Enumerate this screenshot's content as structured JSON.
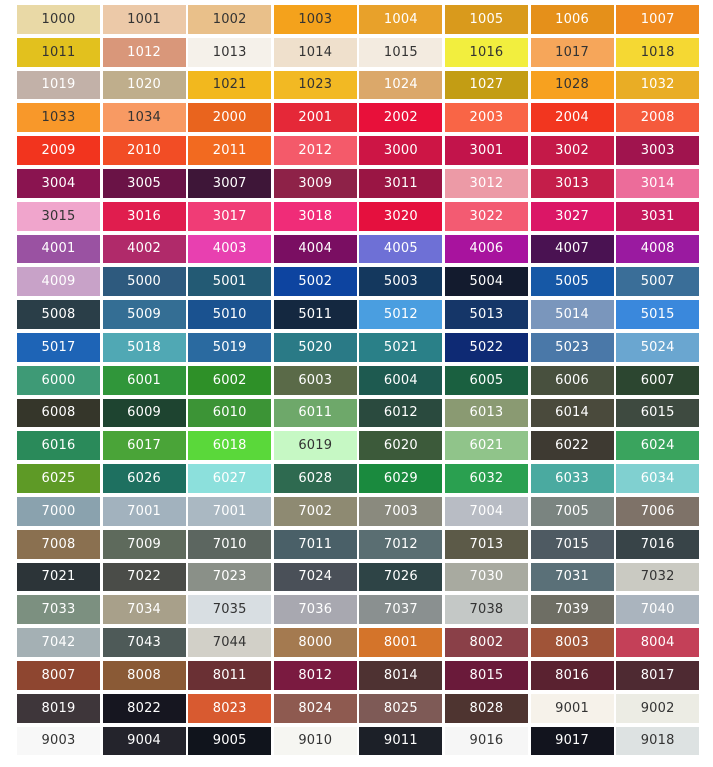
{
  "rows": [
    [
      {
        "code": "1000",
        "bg": "#e9d9a6",
        "fg": "#333"
      },
      {
        "code": "1001",
        "bg": "#ecc9a8",
        "fg": "#333"
      },
      {
        "code": "1002",
        "bg": "#e9c08a",
        "fg": "#333"
      },
      {
        "code": "1003",
        "bg": "#f4a21c",
        "fg": "#333"
      },
      {
        "code": "1004",
        "bg": "#e8a12a",
        "fg": "#fff"
      },
      {
        "code": "1005",
        "bg": "#d99a1c",
        "fg": "#fff"
      },
      {
        "code": "1006",
        "bg": "#e5901a",
        "fg": "#fff"
      },
      {
        "code": "1007",
        "bg": "#ef8a1e",
        "fg": "#fff"
      }
    ],
    [
      {
        "code": "1011",
        "bg": "#e2c11e",
        "fg": "#333"
      },
      {
        "code": "1012",
        "bg": "#d9977a",
        "fg": "#fff"
      },
      {
        "code": "1013",
        "bg": "#f5f1ea",
        "fg": "#333"
      },
      {
        "code": "1014",
        "bg": "#efe0cc",
        "fg": "#333"
      },
      {
        "code": "1015",
        "bg": "#f3ebe0",
        "fg": "#333"
      },
      {
        "code": "1016",
        "bg": "#f2ee3e",
        "fg": "#333"
      },
      {
        "code": "1017",
        "bg": "#f6a65a",
        "fg": "#333"
      },
      {
        "code": "1018",
        "bg": "#f5d833",
        "fg": "#333"
      }
    ],
    [
      {
        "code": "1019",
        "bg": "#c2b1a8",
        "fg": "#fff"
      },
      {
        "code": "1020",
        "bg": "#bfae8c",
        "fg": "#fff"
      },
      {
        "code": "1021",
        "bg": "#f2b81e",
        "fg": "#333"
      },
      {
        "code": "1023",
        "bg": "#f2b923",
        "fg": "#333"
      },
      {
        "code": "1024",
        "bg": "#dba86a",
        "fg": "#fff"
      },
      {
        "code": "1027",
        "bg": "#c39d14",
        "fg": "#fff"
      },
      {
        "code": "1028",
        "bg": "#f7a11f",
        "fg": "#333"
      },
      {
        "code": "1032",
        "bg": "#e9ad25",
        "fg": "#fff"
      }
    ],
    [
      {
        "code": "1033",
        "bg": "#f8982a",
        "fg": "#333"
      },
      {
        "code": "1034",
        "bg": "#f89a63",
        "fg": "#333"
      },
      {
        "code": "2000",
        "bg": "#e9641e",
        "fg": "#fff"
      },
      {
        "code": "2001",
        "bg": "#e52838",
        "fg": "#fff"
      },
      {
        "code": "2002",
        "bg": "#e8103a",
        "fg": "#fff"
      },
      {
        "code": "2003",
        "bg": "#f96546",
        "fg": "#fff"
      },
      {
        "code": "2004",
        "bg": "#f2361f",
        "fg": "#fff"
      },
      {
        "code": "2008",
        "bg": "#f55a3c",
        "fg": "#fff"
      }
    ],
    [
      {
        "code": "2009",
        "bg": "#f2341e",
        "fg": "#fff"
      },
      {
        "code": "2010",
        "bg": "#f24d25",
        "fg": "#fff"
      },
      {
        "code": "2011",
        "bg": "#f26a20",
        "fg": "#fff"
      },
      {
        "code": "2012",
        "bg": "#f45a6a",
        "fg": "#fff"
      },
      {
        "code": "3000",
        "bg": "#cd1545",
        "fg": "#fff"
      },
      {
        "code": "3001",
        "bg": "#c2144b",
        "fg": "#fff"
      },
      {
        "code": "3002",
        "bg": "#c41948",
        "fg": "#fff"
      },
      {
        "code": "3003",
        "bg": "#a0144e",
        "fg": "#fff"
      }
    ],
    [
      {
        "code": "3004",
        "bg": "#8a1450",
        "fg": "#fff"
      },
      {
        "code": "3005",
        "bg": "#6a1346",
        "fg": "#fff"
      },
      {
        "code": "3007",
        "bg": "#3e1638",
        "fg": "#fff"
      },
      {
        "code": "3009",
        "bg": "#8e2248",
        "fg": "#fff"
      },
      {
        "code": "3011",
        "bg": "#9a1544",
        "fg": "#fff"
      },
      {
        "code": "3012",
        "bg": "#ec9aa6",
        "fg": "#fff"
      },
      {
        "code": "3013",
        "bg": "#c41e4a",
        "fg": "#fff"
      },
      {
        "code": "3014",
        "bg": "#ec6c9a",
        "fg": "#fff"
      }
    ],
    [
      {
        "code": "3015",
        "bg": "#f0a5cc",
        "fg": "#333"
      },
      {
        "code": "3016",
        "bg": "#e01d4e",
        "fg": "#fff"
      },
      {
        "code": "3017",
        "bg": "#f03c76",
        "fg": "#fff"
      },
      {
        "code": "3018",
        "bg": "#f02c78",
        "fg": "#fff"
      },
      {
        "code": "3020",
        "bg": "#e5103e",
        "fg": "#fff"
      },
      {
        "code": "3022",
        "bg": "#f35b72",
        "fg": "#fff"
      },
      {
        "code": "3027",
        "bg": "#db1666",
        "fg": "#fff"
      },
      {
        "code": "3031",
        "bg": "#c5165a",
        "fg": "#fff"
      }
    ],
    [
      {
        "code": "4001",
        "bg": "#9a52a2",
        "fg": "#fff"
      },
      {
        "code": "4002",
        "bg": "#b02a6a",
        "fg": "#fff"
      },
      {
        "code": "4003",
        "bg": "#e840b0",
        "fg": "#fff"
      },
      {
        "code": "4004",
        "bg": "#7a0e62",
        "fg": "#fff"
      },
      {
        "code": "4005",
        "bg": "#6e70d6",
        "fg": "#fff"
      },
      {
        "code": "4006",
        "bg": "#a8139e",
        "fg": "#fff"
      },
      {
        "code": "4007",
        "bg": "#4a1252",
        "fg": "#fff"
      },
      {
        "code": "4008",
        "bg": "#9a1aa0",
        "fg": "#fff"
      }
    ],
    [
      {
        "code": "4009",
        "bg": "#c8a2c8",
        "fg": "#fff"
      },
      {
        "code": "5000",
        "bg": "#2e5a7e",
        "fg": "#fff"
      },
      {
        "code": "5001",
        "bg": "#235a74",
        "fg": "#fff"
      },
      {
        "code": "5002",
        "bg": "#0d44a0",
        "fg": "#fff"
      },
      {
        "code": "5003",
        "bg": "#14385e",
        "fg": "#fff"
      },
      {
        "code": "5004",
        "bg": "#131b2e",
        "fg": "#fff"
      },
      {
        "code": "5005",
        "bg": "#1658a6",
        "fg": "#fff"
      },
      {
        "code": "5007",
        "bg": "#3a6e98",
        "fg": "#fff"
      }
    ],
    [
      {
        "code": "5008",
        "bg": "#2a3e48",
        "fg": "#fff"
      },
      {
        "code": "5009",
        "bg": "#346e94",
        "fg": "#fff"
      },
      {
        "code": "5010",
        "bg": "#1a5290",
        "fg": "#fff"
      },
      {
        "code": "5011",
        "bg": "#142840",
        "fg": "#fff"
      },
      {
        "code": "5012",
        "bg": "#4a9ee0",
        "fg": "#fff"
      },
      {
        "code": "5013",
        "bg": "#153668",
        "fg": "#fff"
      },
      {
        "code": "5014",
        "bg": "#7a96bc",
        "fg": "#fff"
      },
      {
        "code": "5015",
        "bg": "#3a88dc",
        "fg": "#fff"
      }
    ],
    [
      {
        "code": "5017",
        "bg": "#1e64b6",
        "fg": "#fff"
      },
      {
        "code": "5018",
        "bg": "#50a8b4",
        "fg": "#fff"
      },
      {
        "code": "5019",
        "bg": "#2a6aa0",
        "fg": "#fff"
      },
      {
        "code": "5020",
        "bg": "#2a7a86",
        "fg": "#fff"
      },
      {
        "code": "5021",
        "bg": "#2a8088",
        "fg": "#fff"
      },
      {
        "code": "5022",
        "bg": "#0e2a74",
        "fg": "#fff"
      },
      {
        "code": "5023",
        "bg": "#4a78a8",
        "fg": "#fff"
      },
      {
        "code": "5024",
        "bg": "#6aa6d0",
        "fg": "#fff"
      }
    ],
    [
      {
        "code": "6000",
        "bg": "#3e9a76",
        "fg": "#fff"
      },
      {
        "code": "6001",
        "bg": "#30963a",
        "fg": "#fff"
      },
      {
        "code": "6002",
        "bg": "#2e9028",
        "fg": "#fff"
      },
      {
        "code": "6003",
        "bg": "#5a6a48",
        "fg": "#fff"
      },
      {
        "code": "6004",
        "bg": "#1e5a50",
        "fg": "#fff"
      },
      {
        "code": "6005",
        "bg": "#1a6040",
        "fg": "#fff"
      },
      {
        "code": "6006",
        "bg": "#48503e",
        "fg": "#fff"
      },
      {
        "code": "6007",
        "bg": "#2c4630",
        "fg": "#fff"
      }
    ],
    [
      {
        "code": "6008",
        "bg": "#35362a",
        "fg": "#fff"
      },
      {
        "code": "6009",
        "bg": "#1e4430",
        "fg": "#fff"
      },
      {
        "code": "6010",
        "bg": "#3c9436",
        "fg": "#fff"
      },
      {
        "code": "6011",
        "bg": "#6ea86a",
        "fg": "#fff"
      },
      {
        "code": "6012",
        "bg": "#2a4a3e",
        "fg": "#fff"
      },
      {
        "code": "6013",
        "bg": "#8a9a72",
        "fg": "#fff"
      },
      {
        "code": "6014",
        "bg": "#4a4a3c",
        "fg": "#fff"
      },
      {
        "code": "6015",
        "bg": "#3e4a40",
        "fg": "#fff"
      }
    ],
    [
      {
        "code": "6016",
        "bg": "#2a8a5a",
        "fg": "#fff"
      },
      {
        "code": "6017",
        "bg": "#4aa438",
        "fg": "#fff"
      },
      {
        "code": "6018",
        "bg": "#5ad83a",
        "fg": "#fff"
      },
      {
        "code": "6019",
        "bg": "#c6f8c4",
        "fg": "#333"
      },
      {
        "code": "6020",
        "bg": "#3c5a3a",
        "fg": "#fff"
      },
      {
        "code": "6021",
        "bg": "#90c48a",
        "fg": "#fff"
      },
      {
        "code": "6022",
        "bg": "#3e3a32",
        "fg": "#fff"
      },
      {
        "code": "6024",
        "bg": "#3aa45e",
        "fg": "#fff"
      }
    ],
    [
      {
        "code": "6025",
        "bg": "#5e9a26",
        "fg": "#fff"
      },
      {
        "code": "6026",
        "bg": "#1e7060",
        "fg": "#fff"
      },
      {
        "code": "6027",
        "bg": "#8ce0dc",
        "fg": "#fff"
      },
      {
        "code": "6028",
        "bg": "#2e6a50",
        "fg": "#fff"
      },
      {
        "code": "6029",
        "bg": "#1a8a3e",
        "fg": "#fff"
      },
      {
        "code": "6032",
        "bg": "#2aa050",
        "fg": "#fff"
      },
      {
        "code": "6033",
        "bg": "#4aaaa0",
        "fg": "#fff"
      },
      {
        "code": "6034",
        "bg": "#80d0d0",
        "fg": "#fff"
      }
    ],
    [
      {
        "code": "7000",
        "bg": "#8aa2ae",
        "fg": "#fff"
      },
      {
        "code": "7001",
        "bg": "#a2b2be",
        "fg": "#fff"
      },
      {
        "code": "7001",
        "bg": "#aab8c2",
        "fg": "#fff"
      },
      {
        "code": "7002",
        "bg": "#8e8a72",
        "fg": "#fff"
      },
      {
        "code": "7003",
        "bg": "#8a8a7e",
        "fg": "#fff"
      },
      {
        "code": "7004",
        "bg": "#b8bcc4",
        "fg": "#fff"
      },
      {
        "code": "7005",
        "bg": "#7a8480",
        "fg": "#fff"
      },
      {
        "code": "7006",
        "bg": "#7e7268",
        "fg": "#fff"
      }
    ],
    [
      {
        "code": "7008",
        "bg": "#8a7050",
        "fg": "#fff"
      },
      {
        "code": "7009",
        "bg": "#5e6a5c",
        "fg": "#fff"
      },
      {
        "code": "7010",
        "bg": "#5c6660",
        "fg": "#fff"
      },
      {
        "code": "7011",
        "bg": "#4a6068",
        "fg": "#fff"
      },
      {
        "code": "7012",
        "bg": "#5a6e72",
        "fg": "#fff"
      },
      {
        "code": "7013",
        "bg": "#5c5a48",
        "fg": "#fff"
      },
      {
        "code": "7015",
        "bg": "#4e5a62",
        "fg": "#fff"
      },
      {
        "code": "7016",
        "bg": "#384448",
        "fg": "#fff"
      }
    ],
    [
      {
        "code": "7021",
        "bg": "#2c3438",
        "fg": "#fff"
      },
      {
        "code": "7022",
        "bg": "#4a4c48",
        "fg": "#fff"
      },
      {
        "code": "7023",
        "bg": "#8a9088",
        "fg": "#fff"
      },
      {
        "code": "7024",
        "bg": "#4a5058",
        "fg": "#fff"
      },
      {
        "code": "7026",
        "bg": "#2e4446",
        "fg": "#fff"
      },
      {
        "code": "7030",
        "bg": "#a8aaa0",
        "fg": "#fff"
      },
      {
        "code": "7031",
        "bg": "#5a7078",
        "fg": "#fff"
      },
      {
        "code": "7032",
        "bg": "#cacac2",
        "fg": "#333"
      }
    ],
    [
      {
        "code": "7033",
        "bg": "#7c9080",
        "fg": "#fff"
      },
      {
        "code": "7034",
        "bg": "#a8a08a",
        "fg": "#fff"
      },
      {
        "code": "7035",
        "bg": "#d8dee2",
        "fg": "#333"
      },
      {
        "code": "7036",
        "bg": "#a8a8b0",
        "fg": "#fff"
      },
      {
        "code": "7037",
        "bg": "#8a9090",
        "fg": "#fff"
      },
      {
        "code": "7038",
        "bg": "#c4c8c6",
        "fg": "#333"
      },
      {
        "code": "7039",
        "bg": "#6e6e64",
        "fg": "#fff"
      },
      {
        "code": "7040",
        "bg": "#aab4be",
        "fg": "#fff"
      }
    ],
    [
      {
        "code": "7042",
        "bg": "#a4b0b4",
        "fg": "#fff"
      },
      {
        "code": "7043",
        "bg": "#4e5a58",
        "fg": "#fff"
      },
      {
        "code": "7044",
        "bg": "#d2d0c8",
        "fg": "#333"
      },
      {
        "code": "8000",
        "bg": "#a47a50",
        "fg": "#fff"
      },
      {
        "code": "8001",
        "bg": "#d4742a",
        "fg": "#fff"
      },
      {
        "code": "8002",
        "bg": "#8a4048",
        "fg": "#fff"
      },
      {
        "code": "8003",
        "bg": "#a05438",
        "fg": "#fff"
      },
      {
        "code": "8004",
        "bg": "#c44058",
        "fg": "#fff"
      }
    ],
    [
      {
        "code": "8007",
        "bg": "#8e4630",
        "fg": "#fff"
      },
      {
        "code": "8008",
        "bg": "#8a5a36",
        "fg": "#fff"
      },
      {
        "code": "8011",
        "bg": "#6a3034",
        "fg": "#fff"
      },
      {
        "code": "8012",
        "bg": "#7a1a40",
        "fg": "#fff"
      },
      {
        "code": "8014",
        "bg": "#4e3232",
        "fg": "#fff"
      },
      {
        "code": "8015",
        "bg": "#6a1a3a",
        "fg": "#fff"
      },
      {
        "code": "8016",
        "bg": "#5a2230",
        "fg": "#fff"
      },
      {
        "code": "8017",
        "bg": "#4e2a32",
        "fg": "#fff"
      }
    ],
    [
      {
        "code": "8019",
        "bg": "#3e363a",
        "fg": "#fff"
      },
      {
        "code": "8022",
        "bg": "#161620",
        "fg": "#fff"
      },
      {
        "code": "8023",
        "bg": "#d85a30",
        "fg": "#fff"
      },
      {
        "code": "8024",
        "bg": "#8e5a50",
        "fg": "#fff"
      },
      {
        "code": "8025",
        "bg": "#7e5a56",
        "fg": "#fff"
      },
      {
        "code": "8028",
        "bg": "#4e3430",
        "fg": "#fff"
      },
      {
        "code": "9001",
        "bg": "#f6f2ea",
        "fg": "#333"
      },
      {
        "code": "9002",
        "bg": "#ecece4",
        "fg": "#333"
      }
    ],
    [
      {
        "code": "9003",
        "bg": "#f8f8f8",
        "fg": "#333"
      },
      {
        "code": "9004",
        "bg": "#24242c",
        "fg": "#fff"
      },
      {
        "code": "9005",
        "bg": "#10141c",
        "fg": "#fff"
      },
      {
        "code": "9010",
        "bg": "#f6f6f2",
        "fg": "#333"
      },
      {
        "code": "9011",
        "bg": "#1c2028",
        "fg": "#fff"
      },
      {
        "code": "9016",
        "bg": "#f6f6f6",
        "fg": "#333"
      },
      {
        "code": "9017",
        "bg": "#12141e",
        "fg": "#fff"
      },
      {
        "code": "9018",
        "bg": "#dde2e2",
        "fg": "#333"
      }
    ]
  ]
}
